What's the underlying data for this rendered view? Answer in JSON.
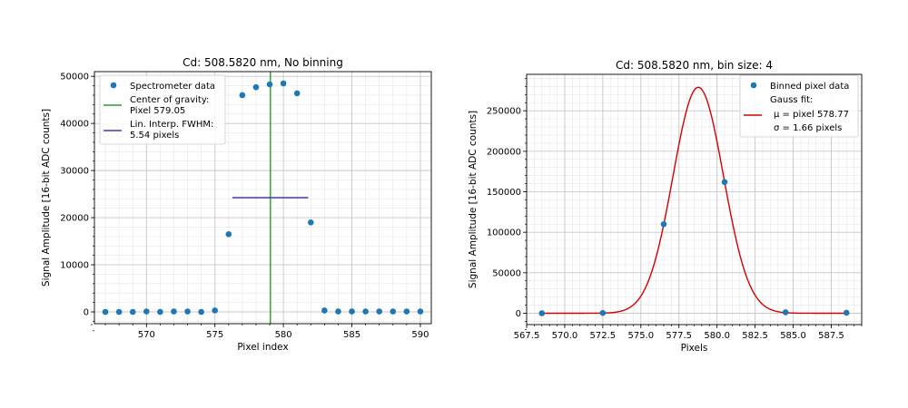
{
  "chart_data": [
    {
      "type": "scatter",
      "title": "Cd: 508.5820 nm, No binning",
      "xlabel": "Pixel index",
      "ylabel": "Signal Amplitude [16-bit ADC counts]",
      "xlim": [
        566.2,
        590.8
      ],
      "ylim": [
        -2500,
        51000
      ],
      "xticks": [
        570,
        575,
        580,
        585,
        590
      ],
      "yticks": [
        0,
        10000,
        20000,
        30000,
        40000,
        50000
      ],
      "grid": true,
      "minor_grid": true,
      "legend_position": "top-left",
      "series": [
        {
          "name": "Spectrometer data",
          "kind": "scatter",
          "color": "#1f77b4",
          "x": [
            567,
            568,
            569,
            570,
            571,
            572,
            573,
            574,
            575,
            576,
            577,
            578,
            579,
            580,
            581,
            582,
            583,
            584,
            585,
            586,
            587,
            588,
            589,
            590
          ],
          "y": [
            0,
            0,
            0,
            100,
            0,
            100,
            100,
            0,
            300,
            16500,
            46000,
            47700,
            48300,
            48500,
            46400,
            19000,
            300,
            100,
            100,
            100,
            100,
            100,
            100,
            100
          ]
        },
        {
          "name": "Center of gravity:\nPixel 579.05",
          "kind": "vline",
          "color": "#2ca02c",
          "x": 579.05
        },
        {
          "name": "Lin. Interp. FWHM:\n 5.54 pixels",
          "kind": "hline",
          "color": "#3b3bb8",
          "x": [
            576.27,
            581.81
          ],
          "y": 24250
        }
      ]
    },
    {
      "type": "scatter",
      "title": "Cd: 508.5820 nm, bin size: 4",
      "xlabel": "Pixels",
      "ylabel": "Signal Amplitude [16-bit ADC counts]",
      "xlim": [
        567.5,
        589.5
      ],
      "ylim": [
        -14000,
        295000
      ],
      "xticks": [
        567.5,
        570.0,
        572.5,
        575.0,
        577.5,
        580.0,
        582.5,
        585.0,
        587.5
      ],
      "xtick_labels": [
        "567.5",
        "570.0",
        "572.5",
        "575.0",
        "577.5",
        "580.0",
        "582.5",
        "585.0",
        "587.5"
      ],
      "yticks": [
        0,
        50000,
        100000,
        150000,
        200000,
        250000
      ],
      "grid": true,
      "minor_grid": true,
      "legend_position": "top-right",
      "legend_title_line": "Gauss fit:",
      "series": [
        {
          "name": "Binned pixel data",
          "kind": "scatter",
          "color": "#1f77b4",
          "x": [
            568.5,
            572.5,
            576.5,
            580.5,
            584.5,
            588.5
          ],
          "y": [
            0,
            300,
            110000,
            162000,
            1200,
            600
          ]
        },
        {
          "name_lines": [
            "μ = pixel 578.77",
            "σ = 1.66 pixels"
          ],
          "kind": "gauss",
          "color": "#d40000",
          "mu": 578.77,
          "sigma": 1.66,
          "amplitude": 279000,
          "x_range": [
            568.5,
            588.5
          ]
        }
      ]
    }
  ]
}
